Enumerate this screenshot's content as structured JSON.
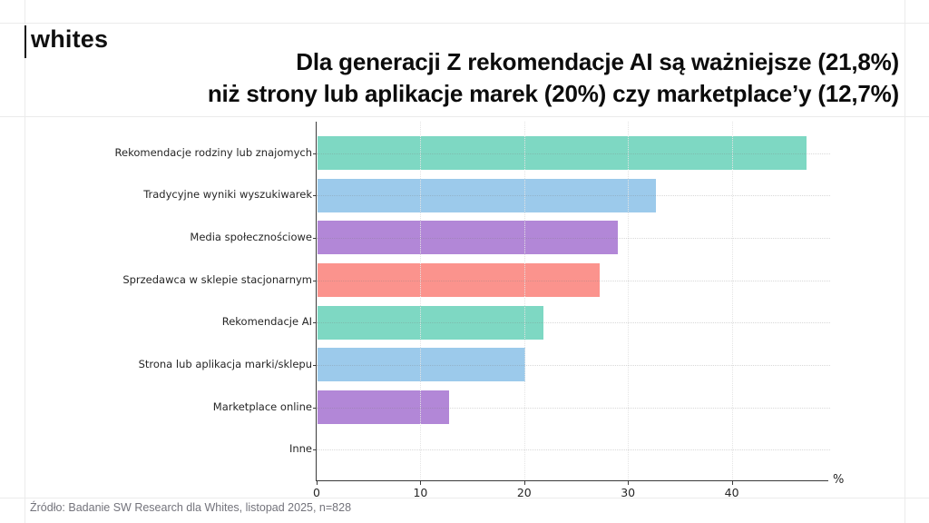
{
  "header": {
    "logo_text": "whites",
    "title_line1": "Dla generacji Z rekomendacje AI są ważniejsze (21,8%)",
    "title_line2": "niż strony lub aplikacje marek (20%) czy marketplace’y (12,7%)"
  },
  "chart_data": {
    "type": "bar",
    "orientation": "horizontal",
    "title": "",
    "xlabel": "%",
    "ylabel": "",
    "categories": [
      "Rekomendacje rodziny lub znajomych",
      "Tradycyjne wyniki wyszukiwarek",
      "Media społecznościowe",
      "Sprzedawca w sklepie stacjonarnym",
      "Rekomendacje AI",
      "Strona lub aplikacja marki/sklepu",
      "Marketplace online",
      "Inne"
    ],
    "values": [
      47.1,
      32.6,
      28.9,
      27.2,
      21.8,
      20.0,
      12.7,
      0
    ],
    "bar_colors": [
      "#7ed8c3",
      "#9ccaeb",
      "#b287d7",
      "#fb938d",
      "#7ed8c3",
      "#9ccaeb",
      "#b287d7",
      "#fb938d"
    ],
    "xticks": [
      0,
      10,
      20,
      30,
      40
    ],
    "xlim": [
      0,
      49.3
    ],
    "grid": "dotted",
    "legend": "none"
  },
  "footer": {
    "source": "Źródło: Badanie SW Research dla Whites, listopad 2025, n=828"
  }
}
